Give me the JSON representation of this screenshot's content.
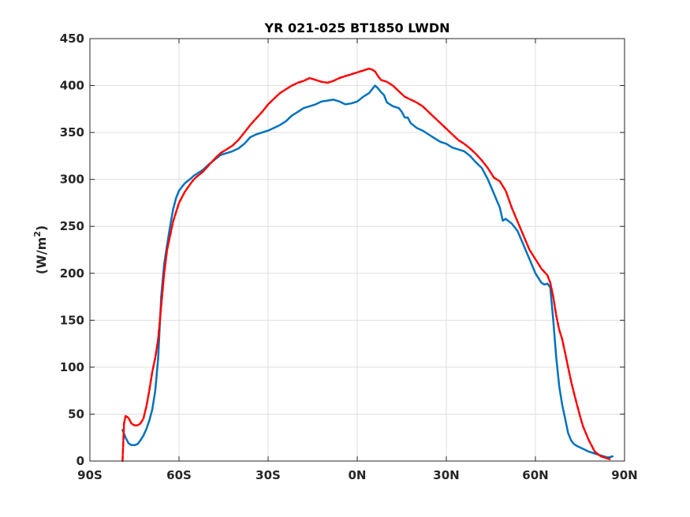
{
  "chart_data": {
    "type": "line",
    "title": "YR 021-025 BT1850 LWDN",
    "xlabel": "",
    "ylabel": "(W/m",
    "ylabel_sup": "2",
    "ylabel_end": ")",
    "xlim": [
      -90,
      90
    ],
    "ylim": [
      0,
      450
    ],
    "xticks": [
      -90,
      -60,
      -30,
      0,
      30,
      60,
      90
    ],
    "xtick_labels": [
      "90S",
      "60S",
      "30S",
      "0N",
      "30N",
      "60N",
      "90N"
    ],
    "yticks": [
      0,
      50,
      100,
      150,
      200,
      250,
      300,
      350,
      400,
      450
    ],
    "ytick_labels": [
      "0",
      "50",
      "100",
      "150",
      "200",
      "250",
      "300",
      "350",
      "400",
      "450"
    ],
    "grid": true,
    "series": [
      {
        "color": "#0072BD",
        "line_style": "solid",
        "x": [
          -79,
          -78,
          -77,
          -76,
          -75,
          -74,
          -73,
          -72,
          -71,
          -70,
          -69,
          -68,
          -67,
          -66,
          -65,
          -64,
          -63,
          -62,
          -61,
          -60,
          -58,
          -56,
          -55,
          -54,
          -52,
          -50,
          -48,
          -46,
          -44,
          -42,
          -40,
          -38,
          -36,
          -34,
          -32,
          -30,
          -28,
          -26,
          -24,
          -22,
          -20,
          -18,
          -16,
          -14,
          -12,
          -10,
          -8,
          -6,
          -4,
          -2,
          0,
          2,
          4,
          5,
          6,
          7,
          8,
          9,
          10,
          12,
          14,
          15,
          16,
          17,
          18,
          20,
          22,
          24,
          26,
          28,
          30,
          32,
          34,
          36,
          38,
          40,
          42,
          44,
          46,
          48,
          49,
          50,
          52,
          54,
          56,
          58,
          60,
          62,
          63,
          64,
          65,
          66,
          67,
          68,
          69,
          70,
          71,
          72,
          73,
          74,
          76,
          78,
          80,
          82,
          84,
          85,
          86
        ],
        "values": [
          33,
          25,
          19,
          17,
          17,
          18,
          22,
          27,
          34,
          43,
          55,
          75,
          110,
          175,
          210,
          230,
          250,
          268,
          280,
          288,
          296,
          301,
          304,
          306,
          310,
          316,
          321,
          326,
          328,
          330,
          333,
          338,
          345,
          348,
          350,
          352,
          355,
          358,
          362,
          368,
          372,
          376,
          378,
          380,
          383,
          384,
          385,
          383,
          380,
          381,
          383,
          388,
          392,
          396,
          400,
          397,
          393,
          390,
          382,
          378,
          376,
          372,
          366,
          366,
          360,
          355,
          352,
          348,
          344,
          340,
          338,
          334,
          332,
          330,
          325,
          318,
          312,
          300,
          285,
          270,
          256,
          258,
          253,
          245,
          230,
          215,
          200,
          190,
          188,
          189,
          185,
          150,
          110,
          80,
          60,
          45,
          30,
          22,
          18,
          16,
          13,
          10,
          8,
          6,
          4,
          4,
          5
        ]
      },
      {
        "color": "#FF0000",
        "line_style": "dashed",
        "x": [
          -79,
          -78.5,
          -78,
          -77,
          -76,
          -75,
          -74,
          -73,
          -72,
          -71,
          -70,
          -69,
          -68,
          -67,
          -66,
          -65,
          -64,
          -63,
          -62,
          -61,
          -60,
          -58,
          -56,
          -55,
          -54,
          -52,
          -50,
          -48,
          -46,
          -44,
          -42,
          -40,
          -38,
          -36,
          -34,
          -32,
          -30,
          -28,
          -26,
          -24,
          -22,
          -20,
          -18,
          -16,
          -14,
          -12,
          -10,
          -8,
          -6,
          -4,
          -2,
          0,
          2,
          4,
          5,
          6,
          7,
          8,
          10,
          12,
          14,
          16,
          18,
          20,
          22,
          24,
          26,
          28,
          30,
          32,
          34,
          36,
          38,
          40,
          42,
          44,
          46,
          48,
          50,
          52,
          54,
          56,
          58,
          60,
          62,
          64,
          65,
          66,
          67,
          68,
          69,
          70,
          71,
          72,
          73,
          74,
          75,
          76,
          78,
          80,
          82,
          84,
          85
        ],
        "values": [
          0,
          40,
          48,
          46,
          40,
          38,
          38,
          40,
          45,
          58,
          75,
          95,
          110,
          130,
          165,
          200,
          225,
          240,
          255,
          265,
          275,
          287,
          296,
          300,
          303,
          308,
          315,
          322,
          328,
          332,
          336,
          342,
          350,
          358,
          365,
          372,
          380,
          386,
          392,
          396,
          400,
          403,
          405,
          408,
          406,
          404,
          403,
          405,
          408,
          410,
          412,
          414,
          416,
          418,
          417,
          415,
          410,
          406,
          404,
          400,
          394,
          388,
          385,
          382,
          378,
          372,
          366,
          360,
          354,
          348,
          342,
          338,
          333,
          327,
          320,
          312,
          302,
          298,
          288,
          270,
          255,
          240,
          225,
          215,
          205,
          198,
          190,
          175,
          155,
          140,
          130,
          115,
          100,
          85,
          72,
          60,
          48,
          37,
          22,
          10,
          5,
          3,
          2
        ]
      }
    ]
  }
}
